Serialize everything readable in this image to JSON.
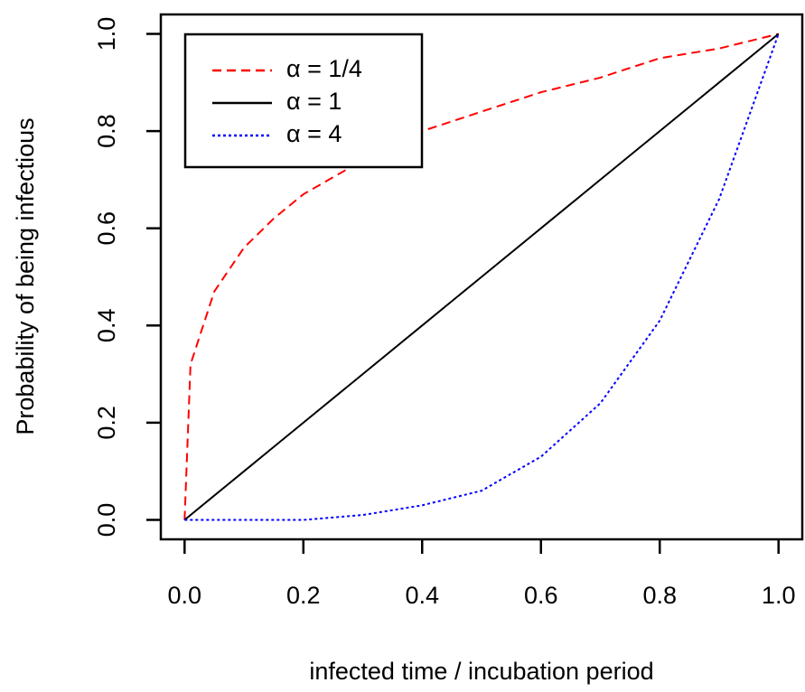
{
  "chart_data": {
    "type": "line",
    "xlabel": "infected time / incubation period",
    "ylabel": "Probability of being infectious",
    "x": [
      0,
      0.01,
      0.05,
      0.1,
      0.15,
      0.2,
      0.3,
      0.4,
      0.5,
      0.6,
      0.7,
      0.8,
      0.9,
      1.0
    ],
    "series": [
      {
        "name": "α = 1/4",
        "color": "#ff0000",
        "linestyle": "dashed",
        "values": [
          0,
          0.32,
          0.47,
          0.56,
          0.62,
          0.67,
          0.74,
          0.8,
          0.84,
          0.88,
          0.91,
          0.95,
          0.97,
          1.0
        ]
      },
      {
        "name": "α = 1",
        "color": "#000000",
        "linestyle": "solid",
        "values": [
          0,
          0.01,
          0.05,
          0.1,
          0.15,
          0.2,
          0.3,
          0.4,
          0.5,
          0.6,
          0.7,
          0.8,
          0.9,
          1.0
        ]
      },
      {
        "name": "α = 4",
        "color": "#0000ff",
        "linestyle": "dotted",
        "values": [
          0,
          0,
          0,
          0,
          0,
          0,
          0.01,
          0.03,
          0.06,
          0.13,
          0.24,
          0.41,
          0.66,
          1.0
        ]
      }
    ],
    "xlim": [
      -0.04,
      1.04
    ],
    "ylim": [
      -0.04,
      1.04
    ],
    "xticks": [
      {
        "value": 0,
        "label": "0.0"
      },
      0.2,
      0.4,
      0.6,
      0.8,
      {
        "value": 1,
        "label": "1.0"
      }
    ],
    "yticks": [
      {
        "value": 0,
        "label": "0.0"
      },
      0.2,
      0.4,
      0.6,
      0.8,
      {
        "value": 1,
        "label": "1.0"
      }
    ],
    "legend": "topleft"
  }
}
